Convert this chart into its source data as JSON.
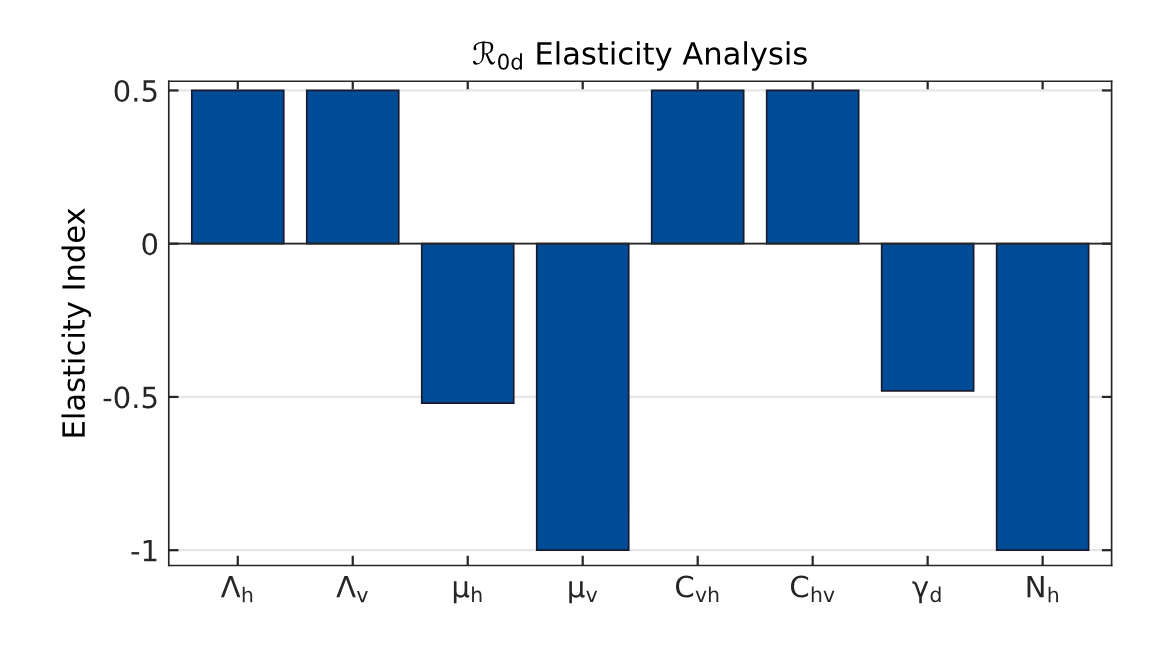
{
  "chart_data": {
    "type": "bar",
    "title": "ℛ$_{0d}$ Elasticity Analysis",
    "ylabel": "Elasticity Index",
    "categories": [
      "Λ$_{h}$",
      "Λ$_{v}$",
      "μ$_{h}$",
      "μ$_{v}$",
      "C$_{vh}$",
      "C$_{hv}$",
      "γ$_{d}$",
      "N$_{h}$"
    ],
    "values": [
      0.5,
      0.5,
      -0.52,
      -1,
      0.5,
      0.5,
      -0.48,
      -1
    ],
    "color": "#004c97",
    "ylim": [
      -1.05,
      0.53
    ],
    "yticks": [
      {
        "value": -1,
        "label": "-1"
      },
      {
        "value": -0.5,
        "label": "-0.5"
      },
      0,
      0.5
    ],
    "grid": "y"
  }
}
